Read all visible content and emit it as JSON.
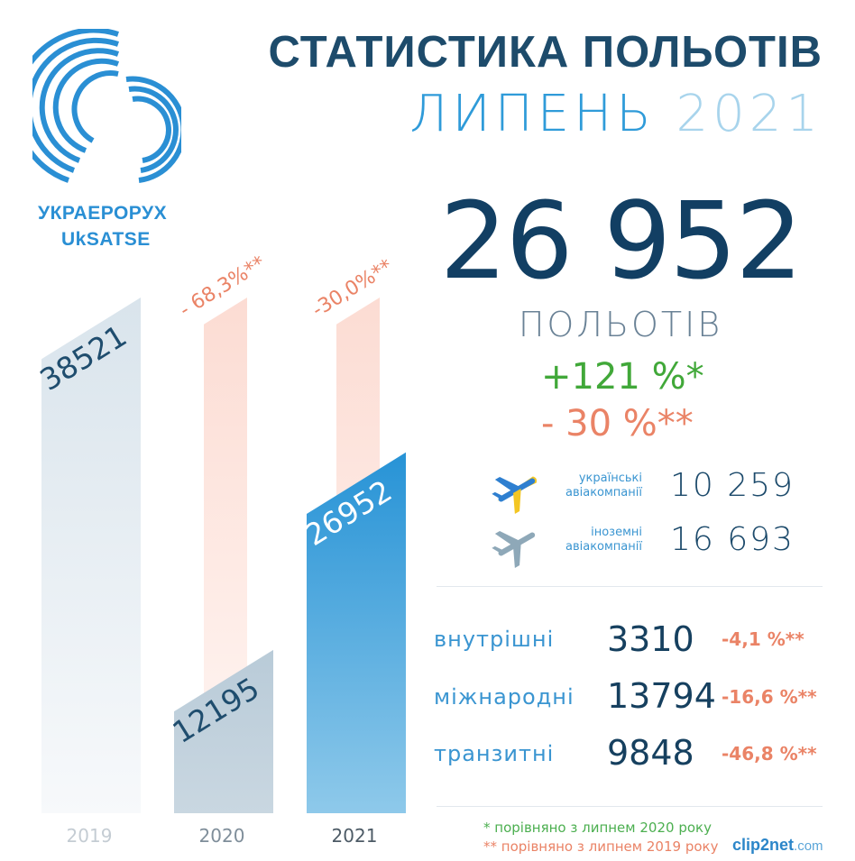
{
  "logo": {
    "name_ua": "УКРАЕРОРУХ",
    "name_en": "UkSATSE"
  },
  "header": {
    "title": "СТАТИСТИКА ПОЛЬОТІВ",
    "month": "ЛИПЕНЬ",
    "year": "2021"
  },
  "total": {
    "value": "26 952",
    "label": "ПОЛЬОТІВ",
    "change_2020": "+121 %*",
    "change_2019": "- 30 %**"
  },
  "airlines": [
    {
      "label_line1": "українські",
      "label_line2": "авіакомпанії",
      "value": "10 259",
      "icon": "airplane-ukraine-flag-icon"
    },
    {
      "label_line1": "іноземні",
      "label_line2": "авіакомпанії",
      "value": "16 693",
      "icon": "airplane-grey-icon"
    }
  ],
  "breakdown": [
    {
      "label": "внутрішні",
      "value": "3310",
      "change": "-4,1 %**"
    },
    {
      "label": "міжнародні",
      "value": "13794",
      "change": "-16,6 %**"
    },
    {
      "label": "транзитні",
      "value": "9848",
      "change": "-46,8 %**"
    }
  ],
  "footnotes": {
    "note1": "* порівняно з липнем 2020 року",
    "note2": "** порівняно з липнем 2019 року"
  },
  "watermark": {
    "text": "clip2net",
    "domain": ".com"
  },
  "colors": {
    "accent": "#2f9bd9",
    "dark": "#123f63",
    "positive": "#41a839",
    "negative": "#ea8366",
    "bar_2019": "#dde6ee",
    "bar_2020": "#b7c9d6",
    "bar_2021": "#2f9bd9",
    "reference_bar": "#fde3dc"
  },
  "chart_data": {
    "type": "bar",
    "categories": [
      "2019",
      "2020",
      "2021"
    ],
    "values": [
      38521,
      12195,
      26952
    ],
    "value_labels": [
      "38521",
      "12195",
      "26952"
    ],
    "change_labels": [
      "",
      "- 68,3%**",
      "-30,0%**"
    ],
    "reference_value": 38521,
    "ylim": [
      0,
      38521
    ],
    "grid": false,
    "title": "",
    "xlabel": "",
    "ylabel": ""
  }
}
